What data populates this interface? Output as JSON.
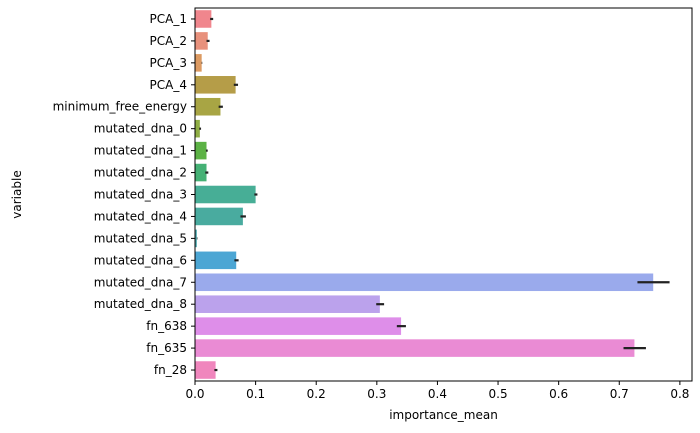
{
  "chart_data": {
    "type": "bar",
    "orientation": "horizontal",
    "xlabel": "importance_mean",
    "ylabel": "variable",
    "xlim": [
      0,
      0.82
    ],
    "xticks": [
      0.0,
      0.1,
      0.2,
      0.3,
      0.4,
      0.5,
      0.6,
      0.7,
      0.8
    ],
    "xtick_labels": [
      "0.0",
      "0.1",
      "0.2",
      "0.3",
      "0.4",
      "0.5",
      "0.6",
      "0.7",
      "0.8"
    ],
    "grid": false,
    "legend": "none",
    "error_bars": true,
    "categories": [
      "PCA_1",
      "PCA_2",
      "PCA_3",
      "PCA_4",
      "minimum_free_energy",
      "mutated_dna_0",
      "mutated_dna_1",
      "mutated_dna_2",
      "mutated_dna_3",
      "mutated_dna_4",
      "mutated_dna_5",
      "mutated_dna_6",
      "mutated_dna_7",
      "mutated_dna_8",
      "fn_638",
      "fn_635",
      "fn_28"
    ],
    "values": [
      0.027,
      0.021,
      0.011,
      0.067,
      0.042,
      0.008,
      0.019,
      0.019,
      0.1,
      0.079,
      0.003,
      0.068,
      0.756,
      0.305,
      0.34,
      0.725,
      0.034
    ],
    "errors": [
      0.002,
      0.002,
      0.0,
      0.003,
      0.003,
      0.001,
      0.001,
      0.002,
      0.002,
      0.004,
      0.0,
      0.003,
      0.026,
      0.006,
      0.007,
      0.018,
      0.002
    ],
    "colors": [
      "#f0868d",
      "#e8917c",
      "#dc9a62",
      "#b59d48",
      "#a8a544",
      "#8fae44",
      "#5cb245",
      "#45b175",
      "#47ae96",
      "#49ab9f",
      "#4aa9b0",
      "#4ca6d4",
      "#9aaaec",
      "#bba2ec",
      "#de8ee9",
      "#ea8bd4",
      "#f086bd"
    ]
  }
}
